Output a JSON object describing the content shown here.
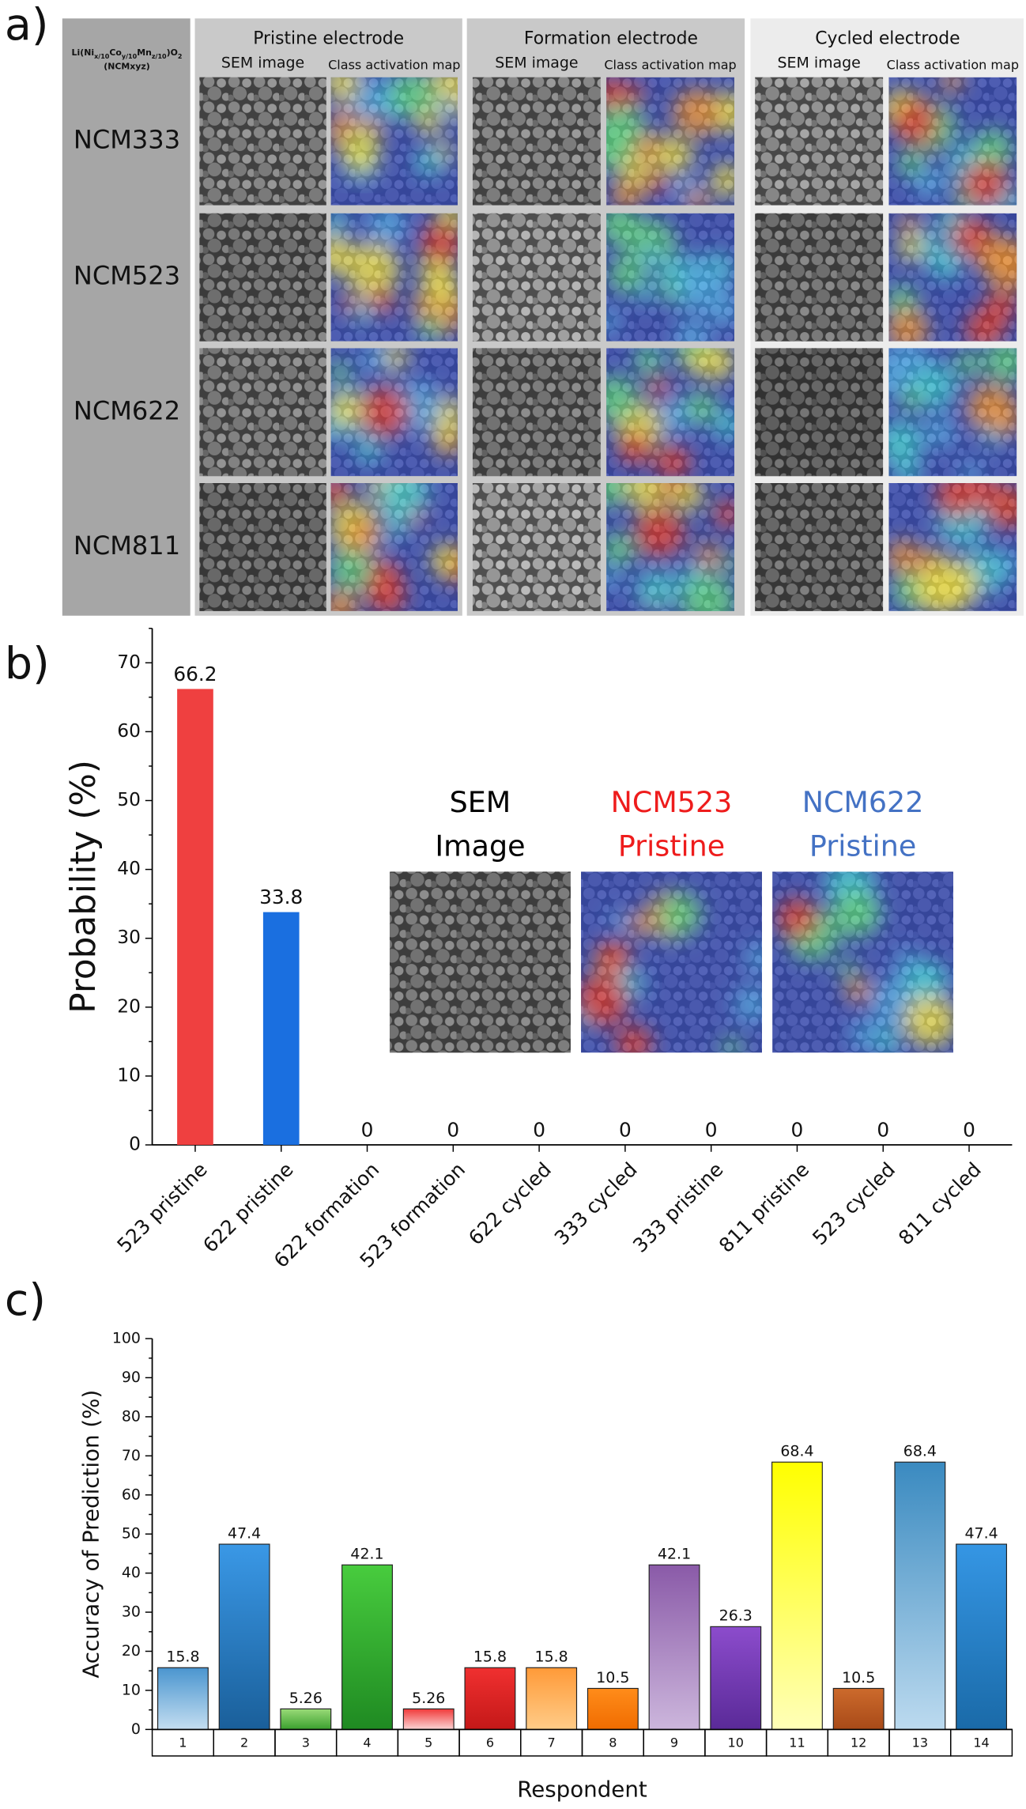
{
  "panel_labels": [
    "a)",
    "b)",
    "c)"
  ],
  "panel_a": {
    "formula": [
      "Li(Ni",
      "x/10",
      "Co",
      "y/10",
      "Mn",
      "z/10",
      ")O",
      "2"
    ],
    "formula_note": "(NCMxyz)",
    "groups": [
      {
        "title": "Pristine electrode",
        "columns": [
          "SEM image",
          "Class activation map"
        ]
      },
      {
        "title": "Formation electrode",
        "columns": [
          "SEM image",
          "Class activation map"
        ]
      },
      {
        "title": "Cycled electrode",
        "columns": [
          "SEM image",
          "Class activation map"
        ]
      }
    ],
    "rows": [
      "NCM333",
      "NCM523",
      "NCM622",
      "NCM811"
    ]
  },
  "chart_data": [
    {
      "type": "bar",
      "ylabel": "Probability (%)",
      "categories": [
        "523 pristine",
        "622 pristine",
        "622 formation",
        "523 formation",
        "622 cycled",
        "333 cycled",
        "333 pristine",
        "811 pristine",
        "523 cycled",
        "811 cycled"
      ],
      "values": [
        66.2,
        33.8,
        0,
        0,
        0,
        0,
        0,
        0,
        0,
        0
      ],
      "colors": [
        "#ef4040",
        "#1a6fe0",
        "#ef4040",
        "#ef4040",
        "#ef4040",
        "#ef4040",
        "#ef4040",
        "#ef4040",
        "#ef4040",
        "#ef4040"
      ],
      "ylim": [
        0,
        75
      ],
      "yticks": [
        0,
        10,
        20,
        30,
        40,
        50,
        60,
        70
      ],
      "yminorticks": [
        5,
        15,
        25,
        35,
        45,
        55,
        65,
        75
      ],
      "inset": [
        {
          "lines": [
            "SEM",
            "Image"
          ],
          "color": "#000000"
        },
        {
          "lines": [
            "NCM523",
            "Pristine"
          ],
          "color": "#ee1c1c"
        },
        {
          "lines": [
            "NCM622",
            "Pristine"
          ],
          "color": "#4472c4"
        }
      ]
    },
    {
      "type": "bar",
      "ylabel": "Accuracy of Prediction (%)",
      "xlabel": "Respondent",
      "categories": [
        "1",
        "2",
        "3",
        "4",
        "5",
        "6",
        "7",
        "8",
        "9",
        "10",
        "11",
        "12",
        "13",
        "14"
      ],
      "values": [
        15.8,
        47.4,
        5.26,
        42.1,
        5.26,
        15.8,
        15.8,
        10.5,
        42.1,
        26.3,
        68.4,
        10.5,
        68.4,
        47.4
      ],
      "colors": [
        [
          "#4a95cf",
          "#c4def1"
        ],
        [
          "#3a98e6",
          "#1a5f9a"
        ],
        [
          "#9ada78",
          "#3aa02e"
        ],
        [
          "#48cc3e",
          "#1f8a22"
        ],
        [
          "#f03a3a",
          "#fcd4d4"
        ],
        [
          "#f03030",
          "#c41818"
        ],
        [
          "#ff9a38",
          "#ffcc88"
        ],
        [
          "#ff8c1a",
          "#f06c00"
        ],
        [
          "#8a5aa8",
          "#ccb6dc"
        ],
        [
          "#8c4ccc",
          "#5a2a98"
        ],
        [
          "#ffff00",
          "#ffffb8"
        ],
        [
          "#cc6a2c",
          "#a84a18"
        ],
        [
          "#3a8ac0",
          "#bcdaef"
        ],
        [
          "#3596e4",
          "#1a6aa8"
        ]
      ],
      "ylim": [
        0,
        100
      ],
      "yticks": [
        0,
        10,
        20,
        30,
        40,
        50,
        60,
        70,
        80,
        90,
        100
      ],
      "yminorticks": [
        5,
        15,
        25,
        35,
        45,
        55,
        65,
        75,
        85,
        95
      ]
    }
  ]
}
